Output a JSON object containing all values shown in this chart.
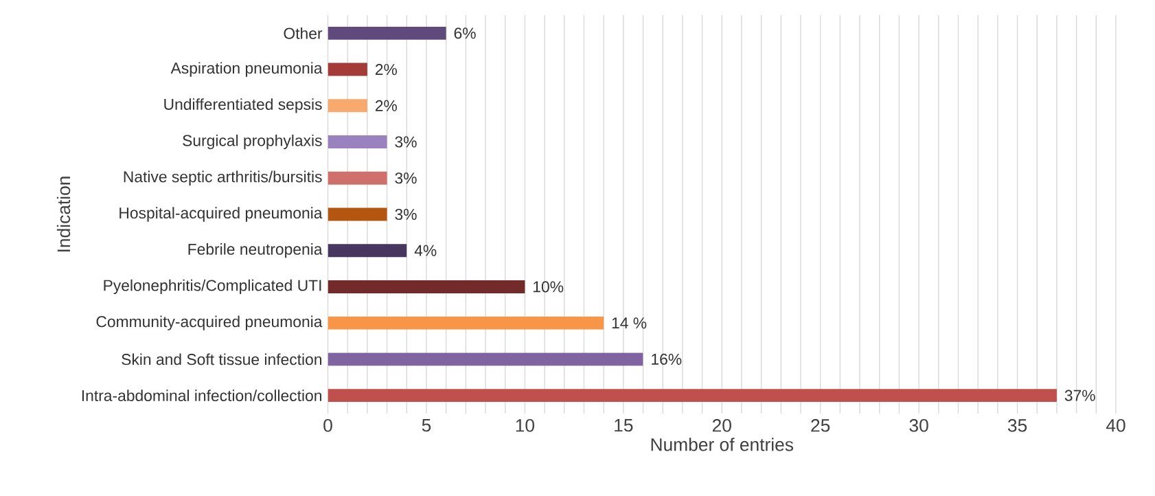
{
  "chart_data": {
    "type": "bar",
    "orientation": "horizontal",
    "xlabel": "Number of entries",
    "ylabel": "Indication",
    "categories": [
      "Other",
      "Aspiration pneumonia",
      "Undifferentiated sepsis",
      "Surgical prophylaxis",
      "Native septic arthritis/bursitis",
      "Hospital-acquired pneumonia",
      "Febrile neutropenia",
      "Pyelonephritis/Complicated UTI",
      "Community-acquired pneumonia",
      "Skin and Soft tissue infection",
      "Intra-abdominal infection/collection"
    ],
    "values": [
      6,
      2,
      2,
      3,
      3,
      3,
      4,
      10,
      14,
      16,
      37
    ],
    "value_labels": [
      "6%",
      "2%",
      "2%",
      "3%",
      "3%",
      "3%",
      "4%",
      "10%",
      "14 %",
      "16%",
      "37%"
    ],
    "colors": [
      "#604a7b",
      "#a33b38",
      "#f7a96e",
      "#9a82bf",
      "#d0706c",
      "#b4560f",
      "#463660",
      "#722b29",
      "#f79646",
      "#8064a2",
      "#c0504d"
    ],
    "xlim": [
      0,
      40
    ],
    "xticks": [
      0,
      {
        "value": 1,
        "label": null
      },
      {
        "value": 2,
        "label": null
      },
      {
        "value": 3,
        "label": null
      },
      {
        "value": 4,
        "label": null
      },
      5,
      {
        "value": 6,
        "label": null
      },
      {
        "value": 7,
        "label": null
      },
      {
        "value": 8,
        "label": null
      },
      {
        "value": 9,
        "label": null
      },
      10,
      {
        "value": 11,
        "label": null
      },
      {
        "value": 12,
        "label": null
      },
      {
        "value": 13,
        "label": null
      },
      {
        "value": 14,
        "label": null
      },
      15,
      {
        "value": 16,
        "label": null
      },
      {
        "value": 17,
        "label": null
      },
      {
        "value": 18,
        "label": null
      },
      {
        "value": 19,
        "label": null
      },
      20,
      {
        "value": 21,
        "label": null
      },
      {
        "value": 22,
        "label": null
      },
      {
        "value": 23,
        "label": null
      },
      {
        "value": 24,
        "label": null
      },
      25,
      {
        "value": 26,
        "label": null
      },
      {
        "value": 27,
        "label": null
      },
      {
        "value": 28,
        "label": null
      },
      {
        "value": 29,
        "label": null
      },
      30,
      {
        "value": 31,
        "label": null
      },
      {
        "value": 32,
        "label": null
      },
      {
        "value": 33,
        "label": null
      },
      {
        "value": 34,
        "label": null
      },
      35,
      {
        "value": 36,
        "label": null
      },
      {
        "value": 37,
        "label": null
      },
      {
        "value": 38,
        "label": null
      },
      {
        "value": 39,
        "label": null
      },
      40
    ],
    "grid": "x"
  }
}
